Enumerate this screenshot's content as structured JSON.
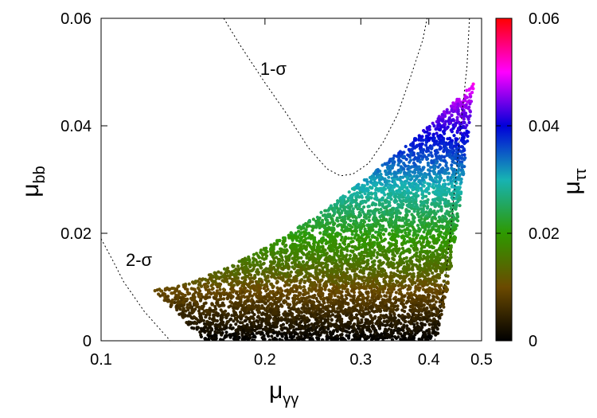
{
  "chart_data": {
    "type": "scatter",
    "xlabel": {
      "base": "μ",
      "sub": "γγ"
    },
    "ylabel": {
      "base": "μ",
      "sub": "bb"
    },
    "colorbar_label": {
      "base": "μ",
      "sub": "ττ"
    },
    "x_scale": "log",
    "xlim": [
      0.1,
      0.5
    ],
    "ylim": [
      0,
      0.06
    ],
    "x_ticks": [
      {
        "value": 0.1,
        "label": "0.1"
      },
      {
        "value": 0.2,
        "label": "0.2"
      },
      {
        "value": 0.3,
        "label": "0.3"
      },
      {
        "value": 0.4,
        "label": "0.4"
      },
      {
        "value": 0.5,
        "label": "0.5"
      }
    ],
    "y_ticks": [
      {
        "value": 0,
        "label": "0"
      },
      {
        "value": 0.02,
        "label": "0.02"
      },
      {
        "value": 0.04,
        "label": "0.04"
      },
      {
        "value": 0.06,
        "label": "0.06"
      }
    ],
    "colorbar": {
      "range": [
        0,
        0.06
      ],
      "ticks": [
        {
          "value": 0,
          "label": "0"
        },
        {
          "value": 0.02,
          "label": "0.02"
        },
        {
          "value": 0.04,
          "label": "0.04"
        },
        {
          "value": 0.06,
          "label": "0.06"
        }
      ],
      "stops": [
        {
          "value": 0,
          "color": "#000000"
        },
        {
          "value": 0.01,
          "color": "#6b4a00"
        },
        {
          "value": 0.02,
          "color": "#2e9900"
        },
        {
          "value": 0.03,
          "color": "#17b3b3"
        },
        {
          "value": 0.04,
          "color": "#0000d9"
        },
        {
          "value": 0.05,
          "color": "#ff00ff"
        },
        {
          "value": 0.06,
          "color": "#ff0000"
        }
      ]
    },
    "contours": [
      {
        "label": "1-σ",
        "label_pos": {
          "x": 0.196,
          "y": 0.0495
        },
        "points": [
          [
            0.168,
            0.06
          ],
          [
            0.18,
            0.055
          ],
          [
            0.2,
            0.048
          ],
          [
            0.22,
            0.042
          ],
          [
            0.24,
            0.036
          ],
          [
            0.26,
            0.032
          ],
          [
            0.275,
            0.0307
          ],
          [
            0.29,
            0.031
          ],
          [
            0.31,
            0.033
          ],
          [
            0.33,
            0.037
          ],
          [
            0.35,
            0.042
          ],
          [
            0.37,
            0.049
          ],
          [
            0.39,
            0.056
          ],
          [
            0.397,
            0.06
          ]
        ]
      },
      {
        "label": "",
        "points": [
          [
            0.475,
            0.06
          ],
          [
            0.47,
            0.051
          ],
          [
            0.46,
            0.042
          ],
          [
            0.45,
            0.032
          ],
          [
            0.44,
            0.022
          ],
          [
            0.43,
            0.012
          ],
          [
            0.41,
            0.0
          ]
        ]
      },
      {
        "label": "2-σ",
        "label_pos": {
          "x": 0.111,
          "y": 0.0139
        },
        "points": [
          [
            0.1,
            0.019
          ],
          [
            0.105,
            0.015
          ],
          [
            0.11,
            0.011
          ],
          [
            0.12,
            0.0055
          ],
          [
            0.13,
            0.0015
          ],
          [
            0.134,
            0.0
          ]
        ]
      }
    ],
    "scatter_region": {
      "x_left": 0.125,
      "x_right": 0.485,
      "bottom_left_x": 0.155,
      "bottom_right_x": 0.41,
      "corner": [
        0.125,
        0.0095
      ],
      "top_right": [
        0.485,
        0.048
      ],
      "n_points": 6500
    }
  }
}
